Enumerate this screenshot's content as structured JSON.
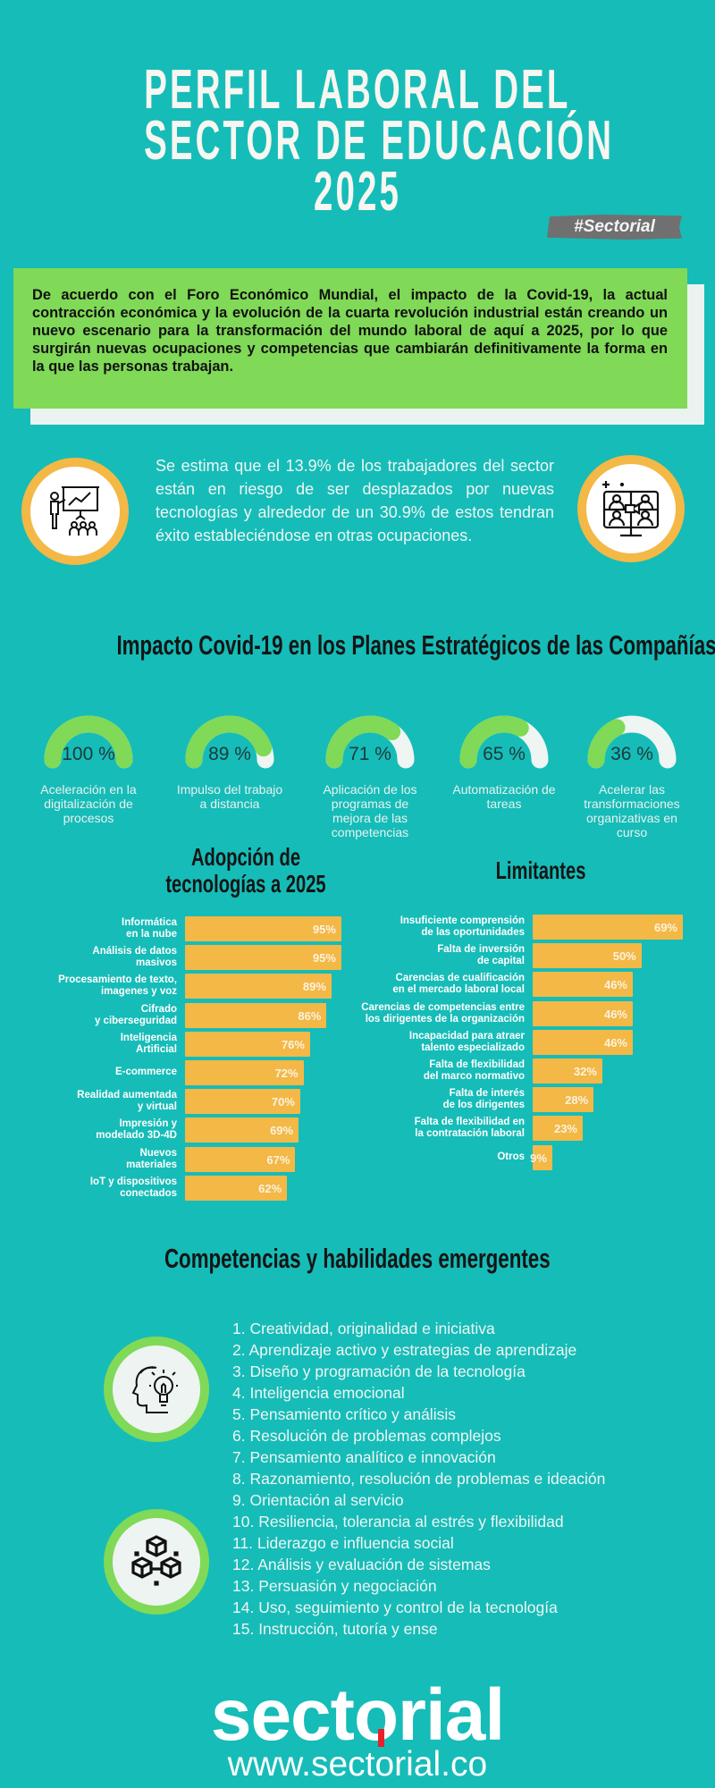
{
  "header": {
    "title_lines": [
      "PERFIL LABORAL DEL",
      "SECTOR DE EDUCACIÓN",
      "2025"
    ],
    "hashtag": "#Sectorial"
  },
  "intro": "De acuerdo con el Foro Económico Mundial, el impacto de la Covid-19, la actual contracción económica  y la evolución de la cuarta revolución industrial están creando un nuevo escenario para la transformación del mundo laboral de aquí a 2025, por lo que surgirán nuevas ocupaciones y competencias que cambiarán definitivamente la forma en la que las personas trabajan.",
  "estimate": "Se estima que el 13.9% de los trabajadores del sector están en riesgo de ser desplazados por nuevas tecnologías y alrededor de un 30.9% de estos tendran éxito estableciéndose en otras ocupaciones.",
  "icons": {
    "left": "presentation-icon",
    "right": "video-conference-icon",
    "skills1": "head-lightbulb-icon",
    "skills2": "blocks-icon"
  },
  "colors": {
    "background": "#16bcb8",
    "green": "#80d957",
    "orange": "#f3b846",
    "track": "#eef5f2"
  },
  "impact": {
    "title": "Impacto Covid-19 en los Planes Estratégicos de las Compañías",
    "gauges": [
      {
        "value": 100,
        "label": "100 %",
        "text": "Aceleración en la digitalización de procesos"
      },
      {
        "value": 89,
        "label": "89 %",
        "text": "Impulso del trabajo a distancia"
      },
      {
        "value": 71,
        "label": "71 %",
        "text": "Aplicación de los programas de mejora de las competencias"
      },
      {
        "value": 65,
        "label": "65 %",
        "text": "Automatización de tareas"
      },
      {
        "value": 36,
        "label": "36 %",
        "text": "Acelerar las transformaciones organizativas en curso"
      }
    ]
  },
  "chart_data": [
    {
      "type": "bar",
      "orientation": "horizontal",
      "title": "Adopción de tecnologías a 2025",
      "categories": [
        "Informática\nen la nube",
        "Análisis de datos\nmasivos",
        "Procesamiento de texto,\nimagenes y voz",
        "Cifrado\ny ciberseguridad",
        "Inteligencia\nArtificial",
        "E-commerce",
        "Realidad aumentada\ny virtual",
        "Impresión y\nmodelado 3D-4D",
        "Nuevos\nmateriales",
        "IoT y dispositivos\nconectados"
      ],
      "values": [
        95,
        95,
        89,
        86,
        76,
        72,
        70,
        69,
        67,
        62
      ],
      "value_labels": [
        "95%",
        "95%",
        "89%",
        "86%",
        "76%",
        "72%",
        "70%",
        "69%",
        "67%",
        "62%"
      ],
      "color": "#f3b846"
    },
    {
      "type": "bar",
      "orientation": "horizontal",
      "title": "Limitantes",
      "categories": [
        "Insuficiente comprensión\nde las oportunidades",
        "Falta de inversión\nde capital",
        "Carencias de cualificación\nen el mercado laboral local",
        "Carencias de competencias entre\nlos dirigentes de la organización",
        "Incapacidad para atraer\ntalento especializado",
        "Falta de flexibilidad\ndel marco normativo",
        "Falta de interés\nde los dirigentes",
        "Falta de flexibilidad en\nla contratación  laboral",
        "Otros"
      ],
      "values": [
        69,
        50,
        46,
        46,
        46,
        32,
        28,
        23,
        9
      ],
      "value_labels": [
        "69%",
        "50%",
        "46%",
        "46%",
        "46%",
        "32%",
        "28%",
        "23%",
        "9%"
      ],
      "color": "#f3b846"
    }
  ],
  "skills": {
    "title": "Competencias y habilidades emergentes",
    "items": [
      "1. Creatividad, originalidad e iniciativa",
      "2. Aprendizaje activo y estrategias de aprendizaje",
      "3. Diseño y programación de la tecnología",
      "4. Inteligencia emocional",
      "5. Pensamiento crítico y análisis",
      "6. Resolución de problemas complejos",
      "7. Pensamiento analítico e innovación",
      "8. Razonamiento, resolución de problemas e ideación",
      "9. Orientación al servicio",
      "10. Resiliencia, tolerancia al estrés y flexibilidad",
      "11. Liderazgo e influencia social",
      "12. Análisis y evaluación de sistemas",
      "13. Persuasión y negociación",
      "14. Uso, seguimiento y control de la tecnología",
      "15. Instrucción, tutoría y ense"
    ]
  },
  "footer": {
    "logo": "sectorial",
    "url": "www.sectorial.co"
  }
}
